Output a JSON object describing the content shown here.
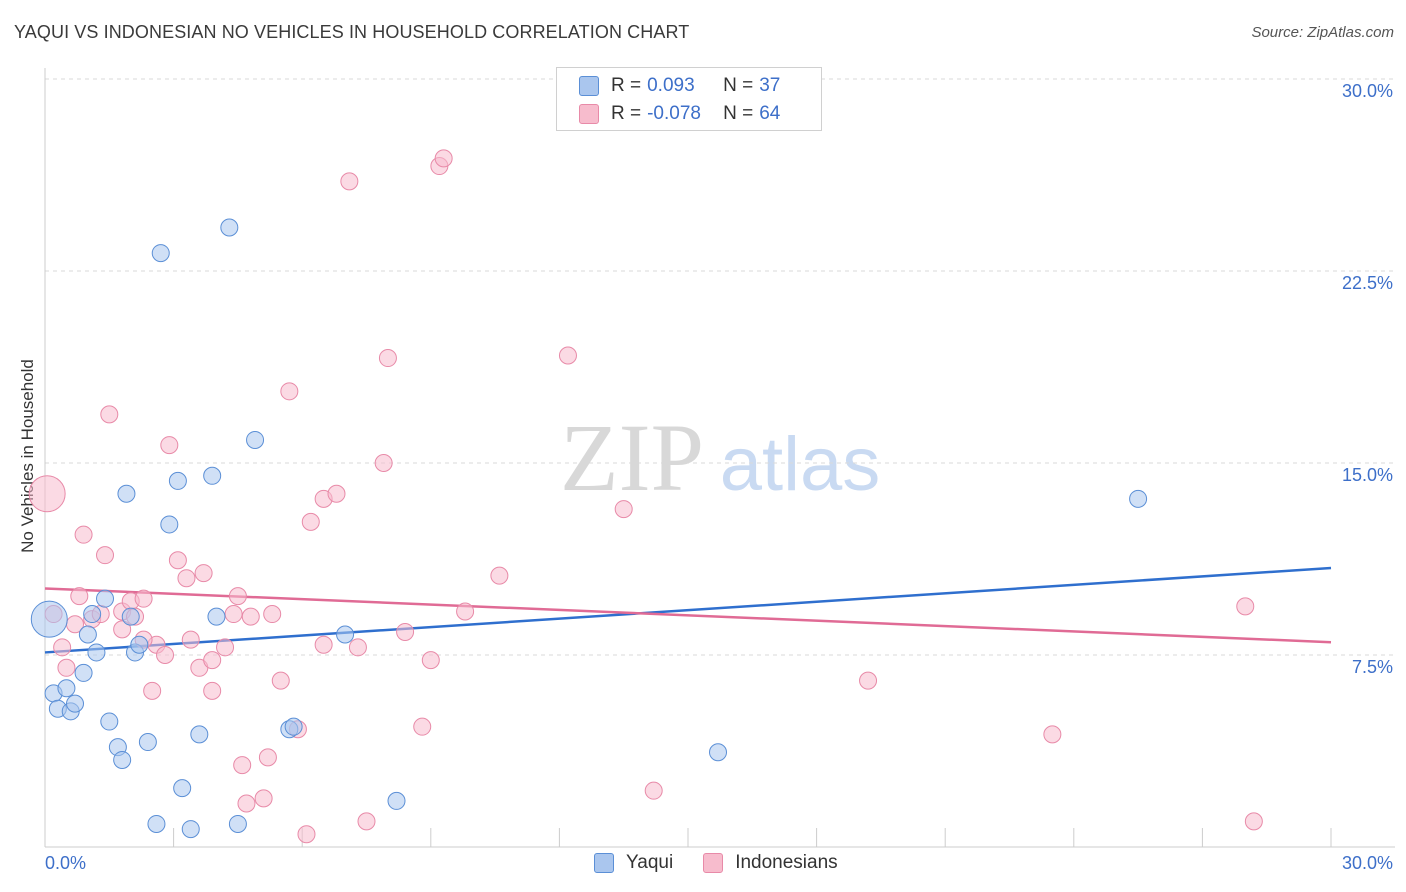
{
  "title": "YAQUI VS INDONESIAN NO VEHICLES IN HOUSEHOLD CORRELATION CHART",
  "source": "Source: ZipAtlas.com",
  "watermark": {
    "zip": "ZIP",
    "atlas": "atlas"
  },
  "legend": {
    "rows": [
      {
        "r_label": "R =",
        "r_value": "0.093",
        "n_label": "N =",
        "n_value": "37"
      },
      {
        "r_label": "R =",
        "r_value": "-0.078",
        "n_label": "N =",
        "n_value": "64"
      }
    ]
  },
  "bottom_legend": {
    "yaqui": "Yaqui",
    "indonesians": "Indonesians"
  },
  "colors": {
    "yaqui_fill": "#aac6ee",
    "yaqui_stroke": "#5b8fd6",
    "yaqui_line": "#2f6fce",
    "indo_fill": "#f7bccd",
    "indo_stroke": "#e88aa8",
    "indo_line": "#e06b95",
    "tick_text": "#3d6fc9",
    "grid": "#d9d9d9"
  },
  "chart_data": {
    "type": "scatter",
    "title": "YAQUI VS INDONESIAN NO VEHICLES IN HOUSEHOLD CORRELATION CHART",
    "xlabel": "",
    "ylabel": "No Vehicles in Household",
    "xlim": [
      0,
      30
    ],
    "ylim": [
      0,
      30
    ],
    "x_tick_labels": [
      "0.0%",
      "30.0%"
    ],
    "y_ticks": [
      7.5,
      15.0,
      22.5,
      30.0
    ],
    "y_tick_labels": [
      "7.5%",
      "15.0%",
      "22.5%",
      "30.0%"
    ],
    "series": [
      {
        "name": "Yaqui",
        "r": 0.093,
        "n": 37,
        "trend": {
          "x": [
            0,
            30
          ],
          "y": [
            7.6,
            10.9
          ]
        },
        "points": [
          {
            "x": 0.1,
            "y": 8.9,
            "big": true
          },
          {
            "x": 0.2,
            "y": 6.0
          },
          {
            "x": 0.3,
            "y": 5.4
          },
          {
            "x": 0.5,
            "y": 6.2
          },
          {
            "x": 0.6,
            "y": 5.3
          },
          {
            "x": 0.7,
            "y": 5.6
          },
          {
            "x": 0.9,
            "y": 6.8
          },
          {
            "x": 1.0,
            "y": 8.3
          },
          {
            "x": 1.1,
            "y": 9.1
          },
          {
            "x": 1.2,
            "y": 7.6
          },
          {
            "x": 1.4,
            "y": 9.7
          },
          {
            "x": 1.5,
            "y": 4.9
          },
          {
            "x": 1.7,
            "y": 3.9
          },
          {
            "x": 1.8,
            "y": 3.4
          },
          {
            "x": 1.9,
            "y": 13.8
          },
          {
            "x": 2.0,
            "y": 9.0
          },
          {
            "x": 2.1,
            "y": 7.6
          },
          {
            "x": 2.2,
            "y": 7.9
          },
          {
            "x": 2.4,
            "y": 4.1
          },
          {
            "x": 2.6,
            "y": 0.9
          },
          {
            "x": 2.7,
            "y": 23.2
          },
          {
            "x": 2.9,
            "y": 12.6
          },
          {
            "x": 3.1,
            "y": 14.3
          },
          {
            "x": 3.2,
            "y": 2.3
          },
          {
            "x": 3.4,
            "y": 0.7
          },
          {
            "x": 3.6,
            "y": 4.4
          },
          {
            "x": 3.9,
            "y": 14.5
          },
          {
            "x": 4.0,
            "y": 9.0
          },
          {
            "x": 4.3,
            "y": 24.2
          },
          {
            "x": 4.5,
            "y": 0.9
          },
          {
            "x": 4.9,
            "y": 15.9
          },
          {
            "x": 5.7,
            "y": 4.6
          },
          {
            "x": 5.8,
            "y": 4.7
          },
          {
            "x": 7.0,
            "y": 8.3
          },
          {
            "x": 8.2,
            "y": 1.8
          },
          {
            "x": 15.7,
            "y": 3.7
          },
          {
            "x": 25.5,
            "y": 13.6
          }
        ]
      },
      {
        "name": "Indonesians",
        "r": -0.078,
        "n": 64,
        "trend": {
          "x": [
            0,
            30
          ],
          "y": [
            10.1,
            8.0
          ]
        },
        "points": [
          {
            "x": 0.05,
            "y": 13.8,
            "big": true
          },
          {
            "x": 0.2,
            "y": 9.1
          },
          {
            "x": 0.4,
            "y": 7.8
          },
          {
            "x": 0.5,
            "y": 7.0
          },
          {
            "x": 0.7,
            "y": 8.7
          },
          {
            "x": 0.8,
            "y": 9.8
          },
          {
            "x": 0.9,
            "y": 12.2
          },
          {
            "x": 1.1,
            "y": 8.9
          },
          {
            "x": 1.3,
            "y": 9.1
          },
          {
            "x": 1.4,
            "y": 11.4
          },
          {
            "x": 1.5,
            "y": 16.9
          },
          {
            "x": 1.8,
            "y": 8.5
          },
          {
            "x": 1.8,
            "y": 9.2
          },
          {
            "x": 2.0,
            "y": 9.6
          },
          {
            "x": 2.1,
            "y": 9.0
          },
          {
            "x": 2.3,
            "y": 9.7
          },
          {
            "x": 2.5,
            "y": 6.1
          },
          {
            "x": 2.6,
            "y": 7.9
          },
          {
            "x": 2.8,
            "y": 7.5
          },
          {
            "x": 2.9,
            "y": 15.7
          },
          {
            "x": 3.1,
            "y": 11.2
          },
          {
            "x": 3.3,
            "y": 10.5
          },
          {
            "x": 3.4,
            "y": 8.1
          },
          {
            "x": 3.6,
            "y": 7.0
          },
          {
            "x": 3.7,
            "y": 10.7
          },
          {
            "x": 3.9,
            "y": 7.3
          },
          {
            "x": 3.9,
            "y": 6.1
          },
          {
            "x": 4.2,
            "y": 7.8
          },
          {
            "x": 4.4,
            "y": 9.1
          },
          {
            "x": 4.5,
            "y": 9.8
          },
          {
            "x": 4.6,
            "y": 3.2
          },
          {
            "x": 4.7,
            "y": 1.7
          },
          {
            "x": 4.8,
            "y": 9.0
          },
          {
            "x": 5.1,
            "y": 1.9
          },
          {
            "x": 5.2,
            "y": 3.5
          },
          {
            "x": 5.3,
            "y": 9.1
          },
          {
            "x": 5.5,
            "y": 6.5
          },
          {
            "x": 5.7,
            "y": 17.8
          },
          {
            "x": 5.9,
            "y": 4.6
          },
          {
            "x": 6.1,
            "y": 0.5
          },
          {
            "x": 6.2,
            "y": 12.7
          },
          {
            "x": 6.5,
            "y": 7.9
          },
          {
            "x": 6.5,
            "y": 13.6
          },
          {
            "x": 6.8,
            "y": 13.8
          },
          {
            "x": 7.1,
            "y": 26.0
          },
          {
            "x": 7.3,
            "y": 7.8
          },
          {
            "x": 7.5,
            "y": 1.0
          },
          {
            "x": 7.9,
            "y": 15.0
          },
          {
            "x": 8.0,
            "y": 19.1
          },
          {
            "x": 8.4,
            "y": 8.4
          },
          {
            "x": 8.8,
            "y": 4.7
          },
          {
            "x": 9.0,
            "y": 7.3
          },
          {
            "x": 9.2,
            "y": 26.6
          },
          {
            "x": 9.3,
            "y": 26.9
          },
          {
            "x": 9.8,
            "y": 9.2
          },
          {
            "x": 10.6,
            "y": 10.6
          },
          {
            "x": 12.2,
            "y": 19.2
          },
          {
            "x": 13.5,
            "y": 13.2
          },
          {
            "x": 14.2,
            "y": 2.2
          },
          {
            "x": 19.2,
            "y": 6.5
          },
          {
            "x": 23.5,
            "y": 4.4
          },
          {
            "x": 28.0,
            "y": 9.4
          },
          {
            "x": 28.2,
            "y": 1.0
          },
          {
            "x": 2.3,
            "y": 8.1
          }
        ]
      }
    ]
  }
}
